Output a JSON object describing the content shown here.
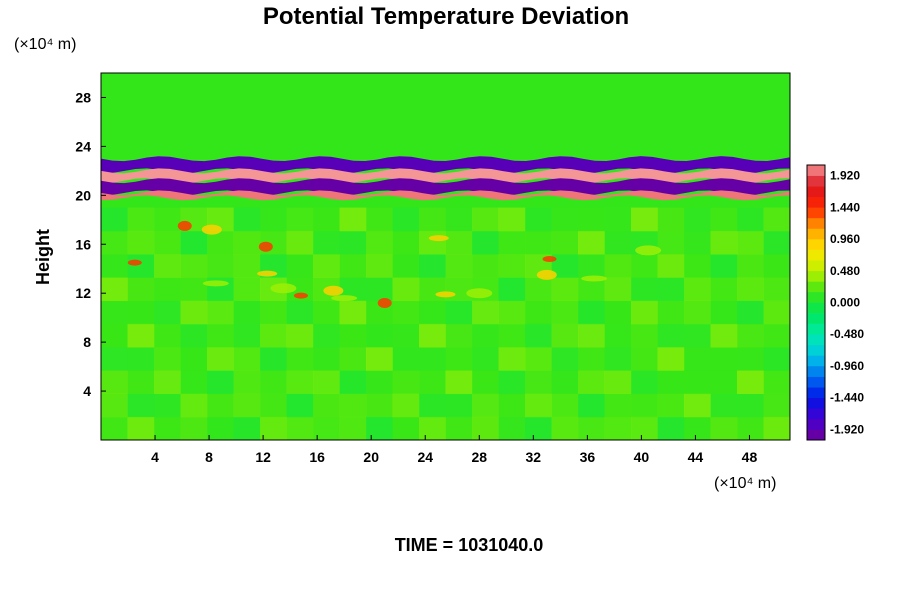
{
  "chart_data": {
    "type": "heatmap",
    "title": "Potential Temperature Deviation",
    "ylabel": "Height",
    "y_unit": "(×10⁴ m)",
    "x_unit": "(×10⁴ m)",
    "xlim": [
      0,
      51
    ],
    "ylim": [
      0,
      30
    ],
    "x_ticks": [
      4,
      8,
      12,
      16,
      20,
      24,
      28,
      32,
      36,
      40,
      44,
      48
    ],
    "y_ticks": [
      4,
      8,
      12,
      16,
      20,
      24,
      28
    ],
    "colorbar": {
      "min": -2.08,
      "max": 2.08,
      "step": 0.16,
      "tick_labels": [
        "1.920",
        "1.440",
        "0.960",
        "0.480",
        "0.000",
        "-0.480",
        "-0.960",
        "-1.440",
        "-1.920"
      ],
      "tick_values": [
        1.92,
        1.44,
        0.96,
        0.48,
        0.0,
        -0.48,
        -0.96,
        -1.44,
        -1.92
      ]
    },
    "field_summary": [
      {
        "feature": "background",
        "value": 0.2
      },
      {
        "feature": "tropopause-band-upper",
        "y_range": [
          22,
          23
        ],
        "value": -1.9
      },
      {
        "feature": "tropopause-band-warm",
        "y_range": [
          21.2,
          22
        ],
        "value": 2.1
      },
      {
        "feature": "tropopause-band-cold",
        "y_range": [
          20.2,
          21.2
        ],
        "value": -2.0
      },
      {
        "feature": "tropopause-band-lower-warm",
        "y_range": [
          19.8,
          20.2
        ],
        "value": 2.0
      },
      {
        "feature": "convective-warm-patches",
        "y_range": [
          10.5,
          17
        ],
        "value": 1.4
      }
    ]
  },
  "footer": {
    "time_label": "TIME = 1031040.0"
  }
}
